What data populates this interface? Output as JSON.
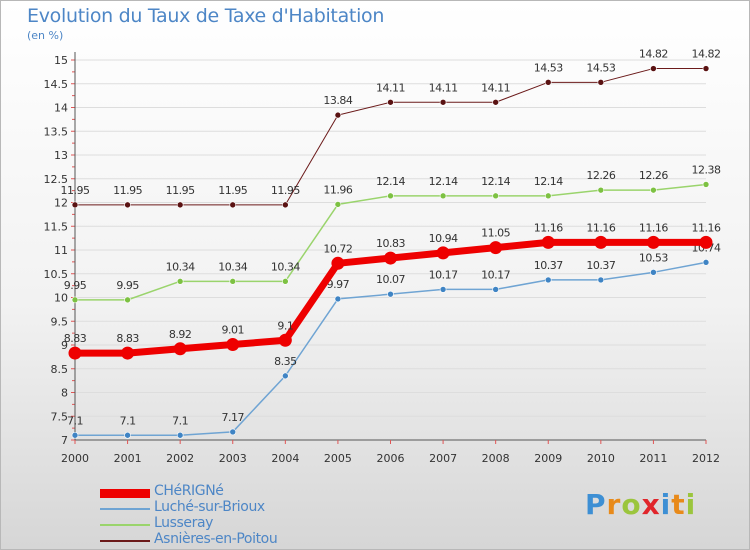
{
  "title": "Evolution du Taux de Taxe d'Habitation",
  "unit": "(en %)",
  "brand": {
    "text": "Proxiti",
    "letter_colors": [
      "#3d8fd4",
      "#e88a1a",
      "#9bc53d",
      "#e0252b",
      "#3d8fd4",
      "#e88a1a",
      "#9bc53d"
    ]
  },
  "colors": {
    "axis": "#555555",
    "grid": "#dddddd",
    "tick_mark": "#e05555",
    "label": "#333333"
  },
  "chart_data": {
    "type": "line",
    "x": [
      "2000",
      "2001",
      "2002",
      "2003",
      "2004",
      "2005",
      "2006",
      "2007",
      "2008",
      "2009",
      "2010",
      "2011",
      "2012"
    ],
    "ylim": [
      7,
      15
    ],
    "y_ticks": [
      "7",
      "7.5",
      "8",
      "8.5",
      "9",
      "9.5",
      "10",
      "10.5",
      "11",
      "11.5",
      "12",
      "12.5",
      "13",
      "13.5",
      "14",
      "14.5",
      "15"
    ],
    "grid": "horizontal",
    "legend_position": "bottom-left",
    "series": [
      {
        "name": "Asnières-en-Poitou",
        "color": "#6b1a1a",
        "marker_fill": "#5a1212",
        "width": 1,
        "values": [
          11.95,
          11.95,
          11.95,
          11.95,
          11.95,
          13.84,
          14.11,
          14.11,
          14.11,
          14.53,
          14.53,
          14.82,
          14.82
        ],
        "labels": [
          "11.95",
          "11.95",
          "11.95",
          "11.95",
          "11.95",
          "13.84",
          "14.11",
          "14.11",
          "14.11",
          "14.53",
          "14.53",
          "14.82",
          "14.82"
        ]
      },
      {
        "name": "Lusseray",
        "color": "#9ad46c",
        "marker_fill": "#7dc142",
        "width": 1.5,
        "values": [
          9.95,
          9.95,
          10.34,
          10.34,
          10.34,
          11.96,
          12.14,
          12.14,
          12.14,
          12.14,
          12.26,
          12.26,
          12.38
        ],
        "labels": [
          "9.95",
          "9.95",
          "10.34",
          "10.34",
          "10.34",
          "11.96",
          "12.14",
          "12.14",
          "12.14",
          "12.14",
          "12.26",
          "12.26",
          "12.38"
        ]
      },
      {
        "name": "Luché-sur-Brioux",
        "color": "#6fa4d3",
        "marker_fill": "#3f84c4",
        "width": 1.5,
        "values": [
          7.1,
          7.1,
          7.1,
          7.17,
          8.35,
          9.97,
          10.07,
          10.17,
          10.17,
          10.37,
          10.37,
          10.53,
          10.74
        ],
        "labels": [
          "7.1",
          "7.1",
          "7.1",
          "7.17",
          "8.35",
          "9.97",
          "10.07",
          "10.17",
          "10.17",
          "10.37",
          "10.37",
          "10.53",
          "10.74"
        ]
      },
      {
        "name": "CHéRIGNé",
        "color": "#ee0000",
        "marker_fill": "#ee0000",
        "width": 7,
        "values": [
          8.83,
          8.83,
          8.92,
          9.01,
          9.1,
          10.72,
          10.83,
          10.94,
          11.05,
          11.16,
          11.16,
          11.16,
          11.16
        ],
        "labels": [
          "8.83",
          "8.83",
          "8.92",
          "9.01",
          "9.1",
          "10.72",
          "10.83",
          "10.94",
          "11.05",
          "11.16",
          "11.16",
          "11.16",
          "11.16"
        ]
      }
    ],
    "legend_order": [
      "CHéRIGNé",
      "Luché-sur-Brioux",
      "Lusseray",
      "Asnières-en-Poitou"
    ]
  }
}
